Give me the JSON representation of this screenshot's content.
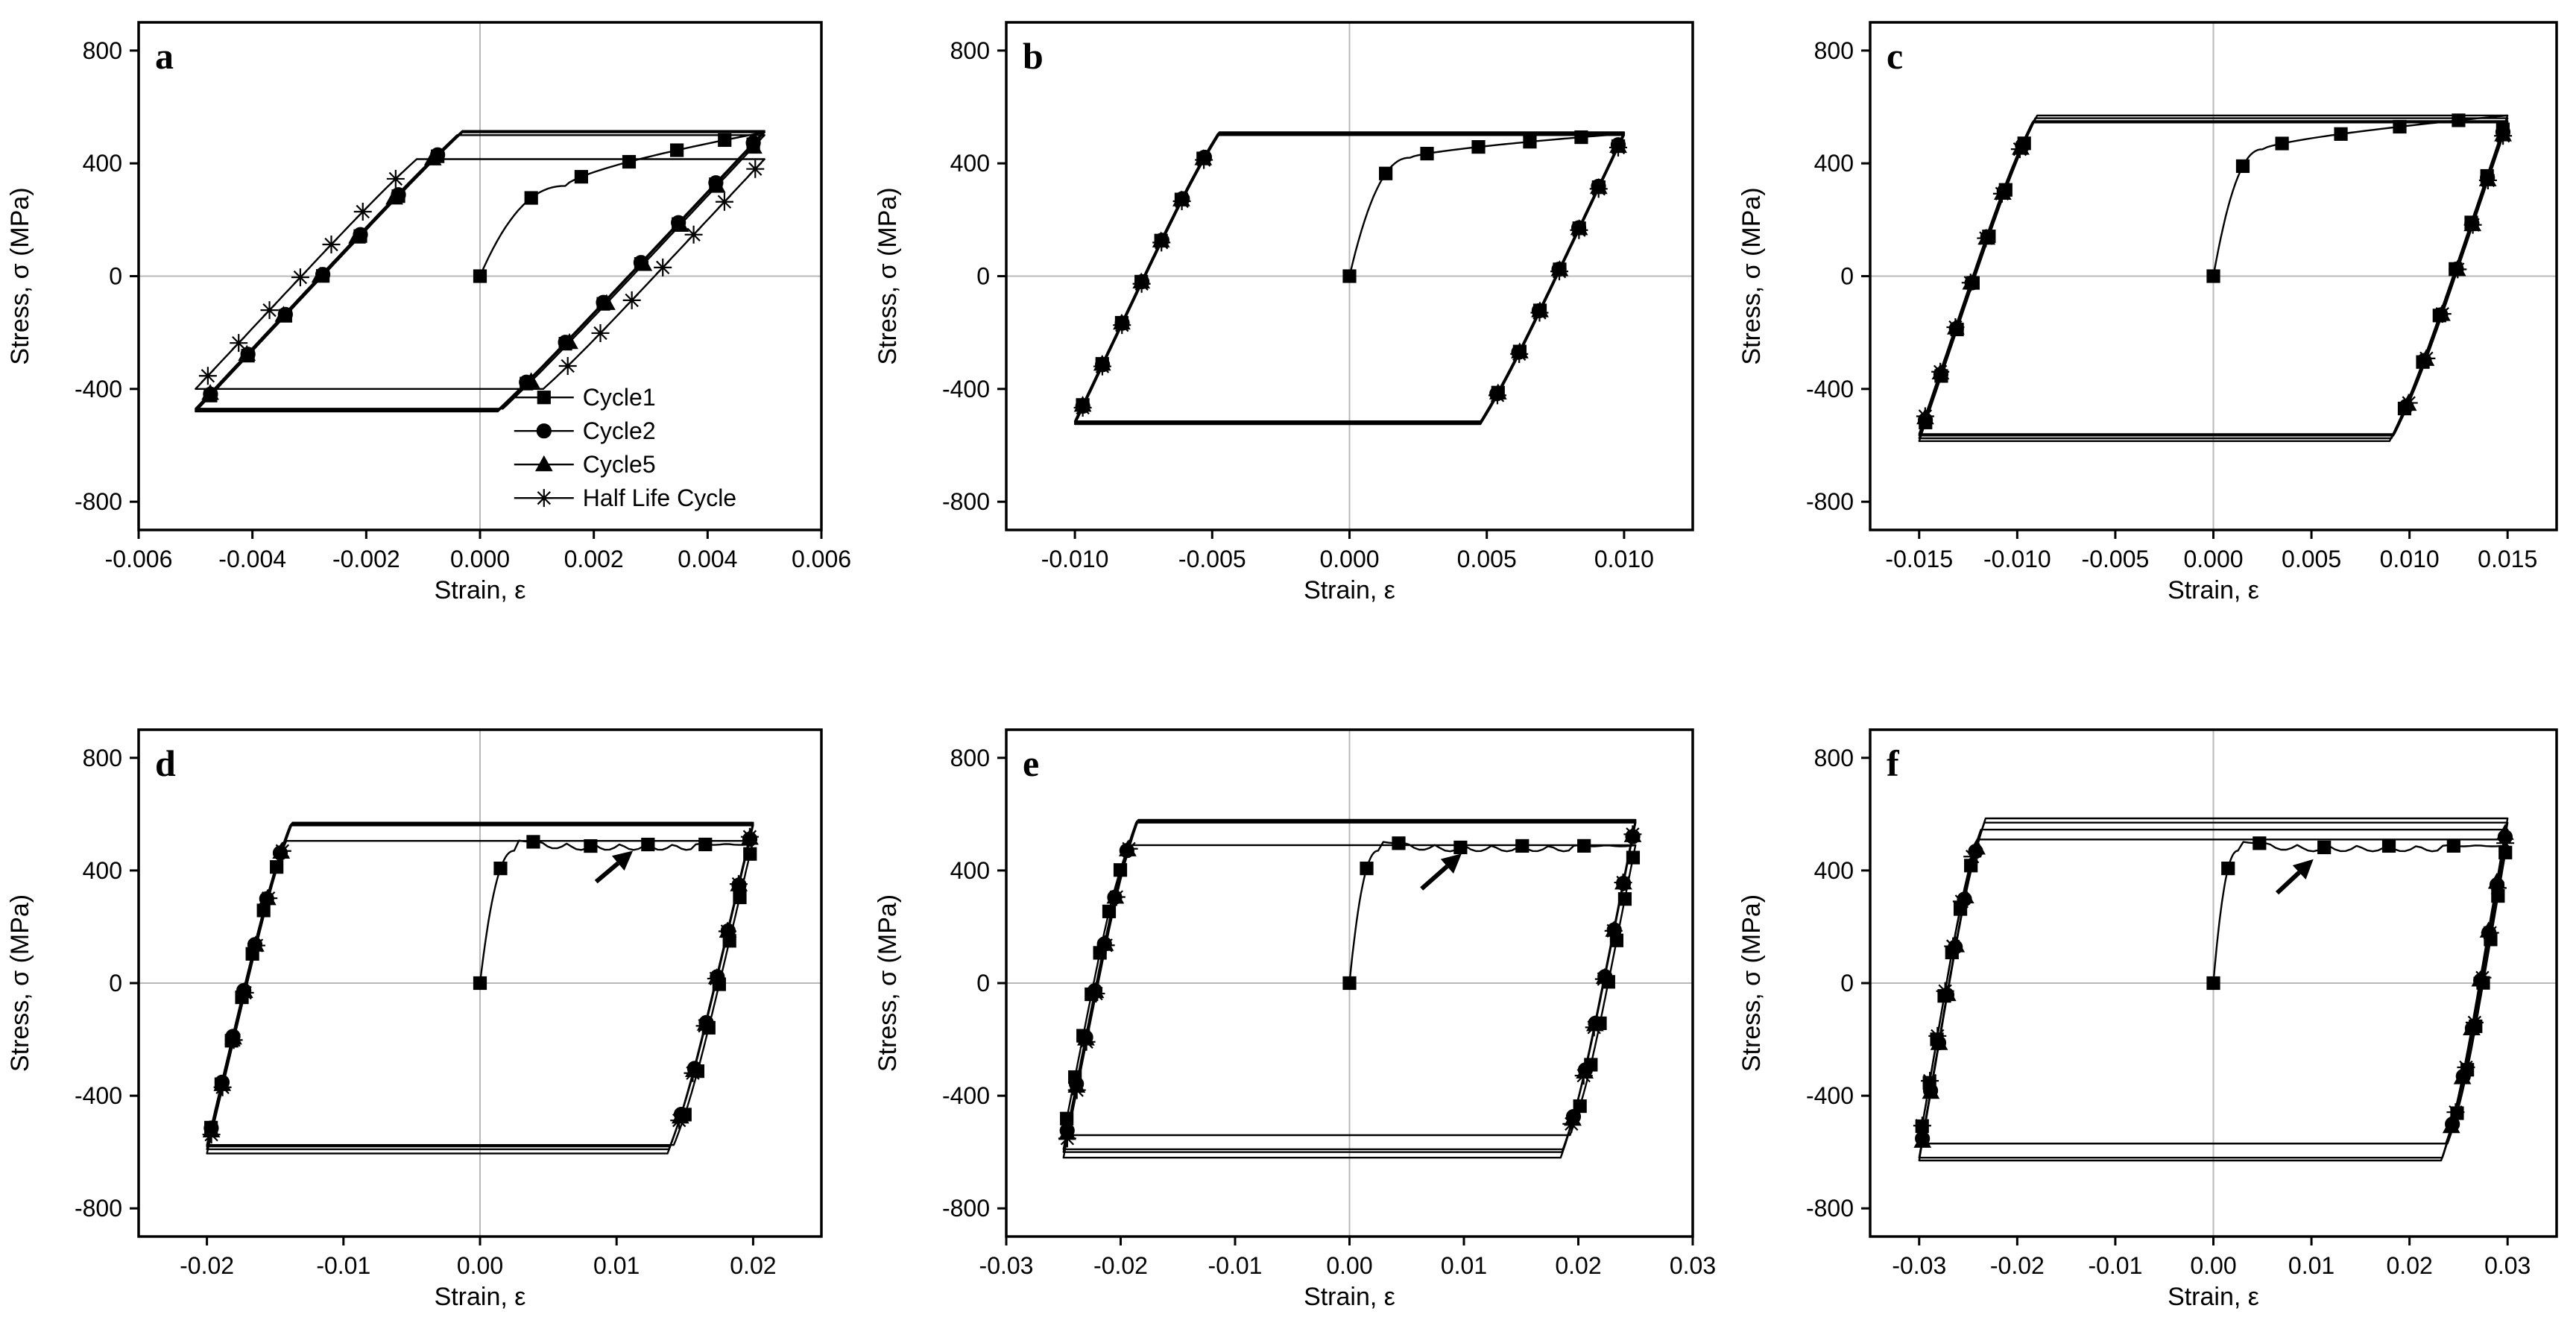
{
  "figure": {
    "panels_layout": "2 rows x 3 columns",
    "series_names": [
      "Cycle1",
      "Cycle2",
      "Cycle5",
      "Half Life Cycle"
    ],
    "series_markers": [
      "square",
      "circle",
      "triangle",
      "star"
    ]
  },
  "chart_data": [
    {
      "panel": "a",
      "type": "line",
      "xlabel": "Strain, ε",
      "ylabel": "Stress, σ (MPa)",
      "xlim": [
        -0.006,
        0.006
      ],
      "ylim": [
        -900,
        900
      ],
      "xticks": [
        -0.006,
        -0.004,
        -0.002,
        0,
        0.002,
        0.004,
        0.006
      ],
      "xtick_labels": [
        "-0.006",
        "-0.004",
        "-0.002",
        "0.000",
        "0.002",
        "0.004",
        "0.006"
      ],
      "yticks": [
        -800,
        -400,
        0,
        400,
        800
      ],
      "ytick_labels": [
        "-800",
        "-400",
        "0",
        "400",
        "800"
      ],
      "amplitude": 0.005,
      "modulus": 215000,
      "peak_stress": {
        "Cycle1": 510,
        "Cycle2": 515,
        "Cycle5": 500,
        "Half Life Cycle": 415
      },
      "min_stress": {
        "Cycle1": -480,
        "Cycle2": -475,
        "Cycle5": -470,
        "Half Life Cycle": -400
      },
      "first_loading": {
        "yield_strain": 0.0015,
        "yield_stress": 320,
        "plateau": "none"
      },
      "legend": {
        "position": "lower-right",
        "entries": [
          "Cycle1",
          "Cycle2",
          "Cycle5",
          "Half Life Cycle"
        ]
      },
      "annotation_arrow": null
    },
    {
      "panel": "b",
      "type": "line",
      "xlabel": "Strain, ε",
      "ylabel": "Stress, σ (MPa)",
      "xlim": [
        -0.0125,
        0.0125
      ],
      "ylim": [
        -900,
        900
      ],
      "xticks": [
        -0.01,
        -0.005,
        0,
        0.005,
        0.01
      ],
      "xtick_labels": [
        "-0.010",
        "-0.005",
        "0.000",
        "0.005",
        "0.010"
      ],
      "yticks": [
        -800,
        -400,
        0,
        400,
        800
      ],
      "ytick_labels": [
        "-800",
        "-400",
        "0",
        "400",
        "800"
      ],
      "amplitude": 0.01,
      "modulus": 205000,
      "peak_stress": {
        "Cycle1": 505,
        "Cycle2": 510,
        "Cycle5": 505,
        "Half Life Cycle": 500
      },
      "min_stress": {
        "Cycle1": -515,
        "Cycle2": -520,
        "Cycle5": -515,
        "Half Life Cycle": -525
      },
      "first_loading": {
        "yield_strain": 0.0022,
        "yield_stress": 420,
        "plateau": "none"
      },
      "legend": null,
      "annotation_arrow": null
    },
    {
      "panel": "c",
      "type": "line",
      "xlabel": "Strain, ε",
      "ylabel": "Stress, σ (MPa)",
      "xlim": [
        -0.0175,
        0.0175
      ],
      "ylim": [
        -900,
        900
      ],
      "xticks": [
        -0.015,
        -0.01,
        -0.005,
        0,
        0.005,
        0.01,
        0.015
      ],
      "xtick_labels": [
        "-0.015",
        "-0.010",
        "-0.005",
        "0.000",
        "0.005",
        "0.010",
        "0.015"
      ],
      "yticks": [
        -800,
        -400,
        0,
        400,
        800
      ],
      "ytick_labels": [
        "-800",
        "-400",
        "0",
        "400",
        "800"
      ],
      "amplitude": 0.015,
      "modulus": 205000,
      "peak_stress": {
        "Cycle1": 570,
        "Cycle2": 560,
        "Cycle5": 550,
        "Half Life Cycle": 545
      },
      "min_stress": {
        "Cycle1": -585,
        "Cycle2": -575,
        "Cycle5": -565,
        "Half Life Cycle": -560
      },
      "first_loading": {
        "yield_strain": 0.0025,
        "yield_stress": 450,
        "plateau": "none"
      },
      "legend": null,
      "annotation_arrow": null
    },
    {
      "panel": "d",
      "type": "line",
      "xlabel": "Strain, ε",
      "ylabel": "Stress, σ (MPa)",
      "xlim": [
        -0.025,
        0.025
      ],
      "ylim": [
        -900,
        900
      ],
      "xticks": [
        -0.02,
        -0.01,
        0,
        0.01,
        0.02
      ],
      "xtick_labels": [
        "-0.02",
        "-0.01",
        "0.00",
        "0.01",
        "0.02"
      ],
      "yticks": [
        -800,
        -400,
        0,
        400,
        800
      ],
      "ytick_labels": [
        "-800",
        "-400",
        "0",
        "400",
        "800"
      ],
      "amplitude": 0.02,
      "modulus": 205000,
      "peak_stress": {
        "Cycle1": 505,
        "Cycle2": 560,
        "Cycle5": 565,
        "Half Life Cycle": 570
      },
      "min_stress": {
        "Cycle1": -575,
        "Cycle2": -580,
        "Cycle5": -590,
        "Half Life Cycle": -605
      },
      "first_loading": {
        "yield_strain": 0.0025,
        "yield_stress": 470,
        "plateau": "serrated",
        "plateau_stress": 495
      },
      "legend": null,
      "annotation_arrow": {
        "tail": [
          0.0085,
          360
        ],
        "head": [
          0.0112,
          470
        ]
      }
    },
    {
      "panel": "e",
      "type": "line",
      "xlabel": "Strain, ε",
      "ylabel": "Stress, σ (MPa)",
      "xlim": [
        -0.03,
        0.03
      ],
      "ylim": [
        -900,
        900
      ],
      "xticks": [
        -0.03,
        -0.02,
        -0.01,
        0,
        0.01,
        0.02,
        0.03
      ],
      "xtick_labels": [
        "-0.03",
        "-0.02",
        "-0.01",
        "0.00",
        "0.01",
        "0.02",
        "0.03"
      ],
      "yticks": [
        -800,
        -400,
        0,
        400,
        800
      ],
      "ytick_labels": [
        "-800",
        "-400",
        "0",
        "400",
        "800"
      ],
      "amplitude": 0.025,
      "modulus": 205000,
      "peak_stress": {
        "Cycle1": 490,
        "Cycle2": 570,
        "Cycle5": 575,
        "Half Life Cycle": 580
      },
      "min_stress": {
        "Cycle1": -540,
        "Cycle2": -590,
        "Cycle5": -600,
        "Half Life Cycle": -620
      },
      "first_loading": {
        "yield_strain": 0.0025,
        "yield_stress": 470,
        "plateau": "serrated",
        "plateau_stress": 490
      },
      "legend": null,
      "annotation_arrow": {
        "tail": [
          0.0063,
          335
        ],
        "head": [
          0.0098,
          460
        ]
      }
    },
    {
      "panel": "f",
      "type": "line",
      "xlabel": "Strain, ε",
      "ylabel": "Stress, σ (MPa)",
      "xlim": [
        -0.035,
        0.035
      ],
      "ylim": [
        -900,
        900
      ],
      "xticks": [
        -0.03,
        -0.02,
        -0.01,
        0,
        0.01,
        0.02,
        0.03
      ],
      "xtick_labels": [
        "-0.03",
        "-0.02",
        "-0.01",
        "0.00",
        "0.01",
        "0.02",
        "0.03"
      ],
      "yticks": [
        -800,
        -400,
        0,
        400,
        800
      ],
      "ytick_labels": [
        "-800",
        "-400",
        "0",
        "400",
        "800"
      ],
      "amplitude": 0.03,
      "modulus": 205000,
      "peak_stress": {
        "Cycle1": 510,
        "Cycle2": 570,
        "Cycle5": 585,
        "Half Life Cycle": 545
      },
      "min_stress": {
        "Cycle1": -570,
        "Cycle2": -620,
        "Cycle5": -630,
        "Half Life Cycle": -570
      },
      "first_loading": {
        "yield_strain": 0.0025,
        "yield_stress": 470,
        "plateau": "serrated",
        "plateau_stress": 490
      },
      "legend": null,
      "annotation_arrow": {
        "tail": [
          0.0065,
          320
        ],
        "head": [
          0.0102,
          440
        ]
      }
    }
  ]
}
